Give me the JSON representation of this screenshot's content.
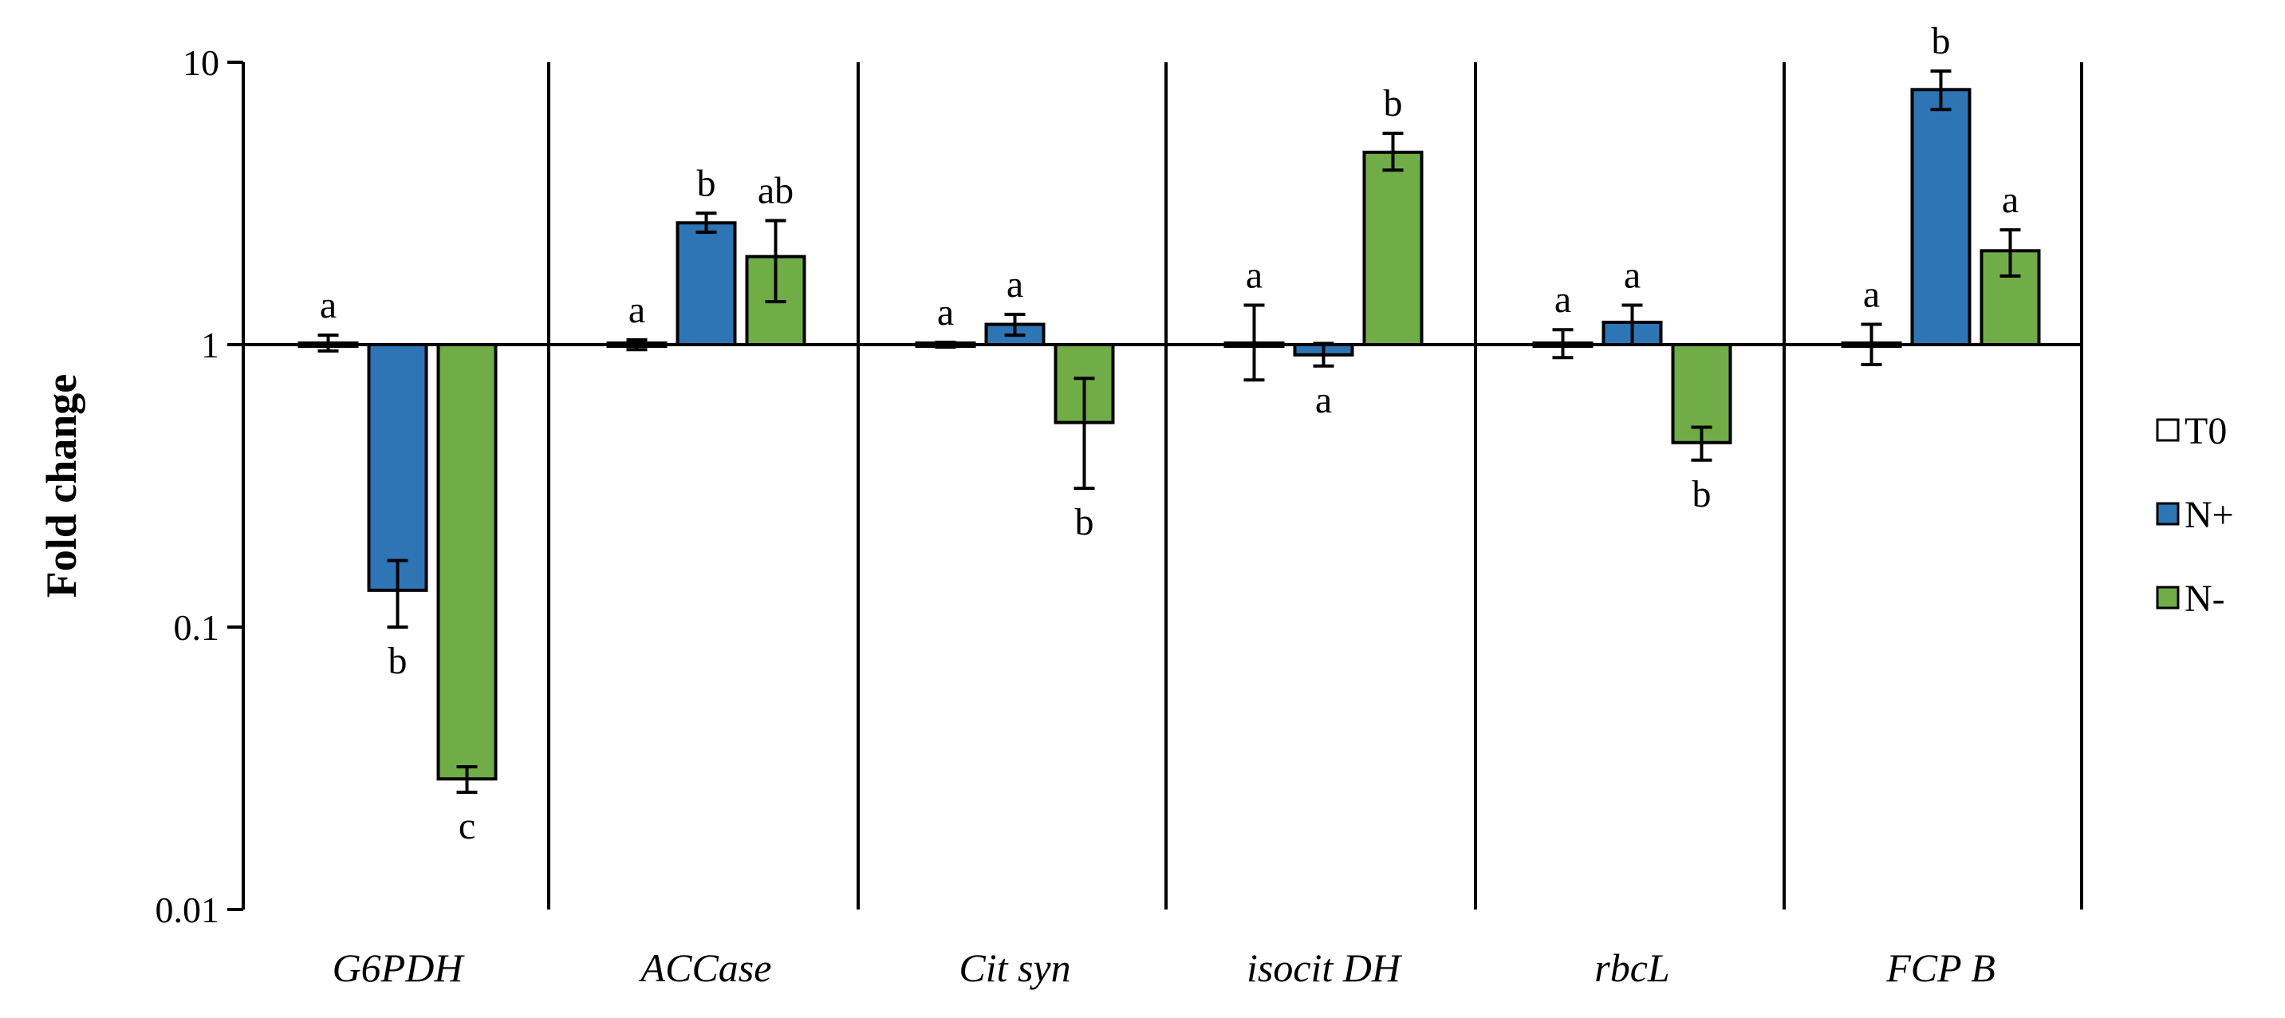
{
  "chart_data": {
    "type": "bar",
    "title": "",
    "xlabel": "",
    "ylabel": "Fold change",
    "yscale": "log",
    "ylim": [
      0.01,
      10
    ],
    "yticks": [
      0.01,
      0.1,
      1,
      10
    ],
    "ytick_labels": [
      "0.01",
      "0.1",
      "1",
      "10"
    ],
    "baseline": 1,
    "categories": [
      "G6PDH",
      "ACCase",
      "Cit syn",
      "isocit DH",
      "rbcL",
      "FCP B"
    ],
    "series": [
      {
        "name": "T0",
        "color": "#ffffff",
        "values": [
          1.0,
          1.0,
          1.0,
          1.0,
          1.0,
          1.0
        ],
        "err_low": [
          0.95,
          0.96,
          0.98,
          0.75,
          0.9,
          0.85
        ],
        "err_high": [
          1.08,
          1.04,
          1.02,
          1.38,
          1.13,
          1.18
        ],
        "letters": [
          "a",
          "a",
          "a",
          "a",
          "a",
          "a"
        ]
      },
      {
        "name": "N+",
        "color": "#2e75b6",
        "values": [
          0.135,
          2.7,
          1.18,
          0.92,
          1.2,
          8.0
        ],
        "err_low": [
          0.1,
          2.5,
          1.08,
          0.84,
          1.0,
          6.8
        ],
        "err_high": [
          0.172,
          2.92,
          1.28,
          1.01,
          1.38,
          9.3
        ],
        "letters": [
          "b",
          "b",
          "a",
          "a",
          "a",
          "b"
        ]
      },
      {
        "name": "N-",
        "color": "#70ad47",
        "values": [
          0.029,
          2.05,
          0.53,
          4.8,
          0.45,
          2.15
        ],
        "err_low": [
          0.026,
          1.42,
          0.31,
          4.15,
          0.39,
          1.75
        ],
        "err_high": [
          0.032,
          2.75,
          0.76,
          5.6,
          0.51,
          2.55
        ],
        "letters": [
          "c",
          "ab",
          "b",
          "b",
          "b",
          "a"
        ]
      }
    ],
    "legend": {
      "position": "right",
      "items": [
        "T0",
        "N+",
        "N-"
      ]
    }
  }
}
